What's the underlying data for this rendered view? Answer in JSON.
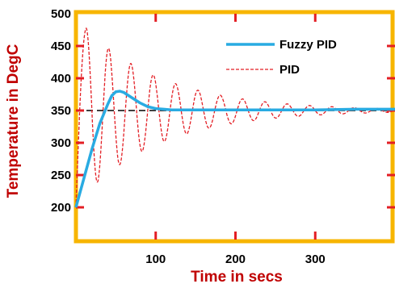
{
  "chart_data": {
    "type": "line",
    "xlabel": "Time in secs",
    "ylabel": "Temperature in DegC",
    "xlim": [
      0,
      400
    ],
    "ylim": [
      150,
      500
    ],
    "x_ticks": [
      "100",
      "200",
      "300"
    ],
    "y_ticks": [
      "200",
      "250",
      "300",
      "350",
      "400",
      "450",
      "500"
    ],
    "x_tick_values": [
      100,
      200,
      300
    ],
    "y_tick_values": [
      200,
      250,
      300,
      350,
      400,
      450,
      500
    ],
    "reference_line": {
      "y": 350,
      "style": "dashed",
      "color": "#000000"
    },
    "legend_position": "top-right",
    "series": [
      {
        "name": "Fuzzy PID",
        "color": "#29abe2",
        "style": "solid",
        "x": [
          0,
          10,
          20,
          30,
          40,
          45,
          50,
          55,
          60,
          70,
          80,
          90,
          100,
          110,
          120,
          150,
          200,
          250,
          300,
          350,
          400
        ],
        "y": [
          200,
          245,
          290,
          330,
          360,
          373,
          379,
          380,
          378,
          370,
          362,
          356,
          353,
          352,
          351,
          351,
          351,
          351,
          351,
          352,
          352
        ]
      },
      {
        "name": "PID",
        "color": "#e31e24",
        "style": "dashed",
        "model": {
          "start": 200,
          "target": 350,
          "initial_amplitude": 150,
          "period": 28,
          "decay": 0.01,
          "peak_time": 13
        }
      }
    ]
  },
  "colors": {
    "frame": "#f7b500",
    "tick_marks": "#e31e24",
    "axis_title": "#c00000"
  }
}
